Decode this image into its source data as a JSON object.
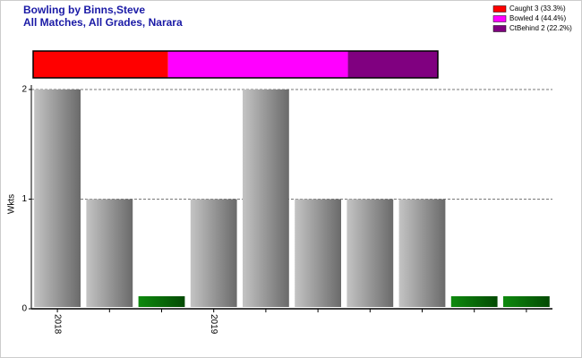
{
  "chart_data": {
    "type": "bar",
    "title": "Bowling by Binns,Steve",
    "subtitle": "All Matches, All Grades, Narara",
    "y_label": "Wkts",
    "categories": [
      "2018",
      null,
      null,
      "2019",
      null,
      null,
      null,
      null,
      null,
      null
    ],
    "values": [
      2,
      1,
      0,
      1,
      2,
      1,
      1,
      1,
      0,
      0
    ],
    "color": "#9a9a9a",
    "zero_color": "#0a6e0a",
    "ylim": [
      0,
      2
    ],
    "yticks": [
      0,
      1,
      2
    ],
    "grid": true,
    "legend_position": "top-right",
    "dismissals": [
      {
        "name": "Caught 3 (33.3%)",
        "color": "#ff0000",
        "value": 3
      },
      {
        "name": "Bowled 4 (44.4%)",
        "color": "#ff00ff",
        "value": 4
      },
      {
        "name": "CtBehind 2 (22.2%)",
        "color": "#800080",
        "value": 2
      }
    ]
  }
}
